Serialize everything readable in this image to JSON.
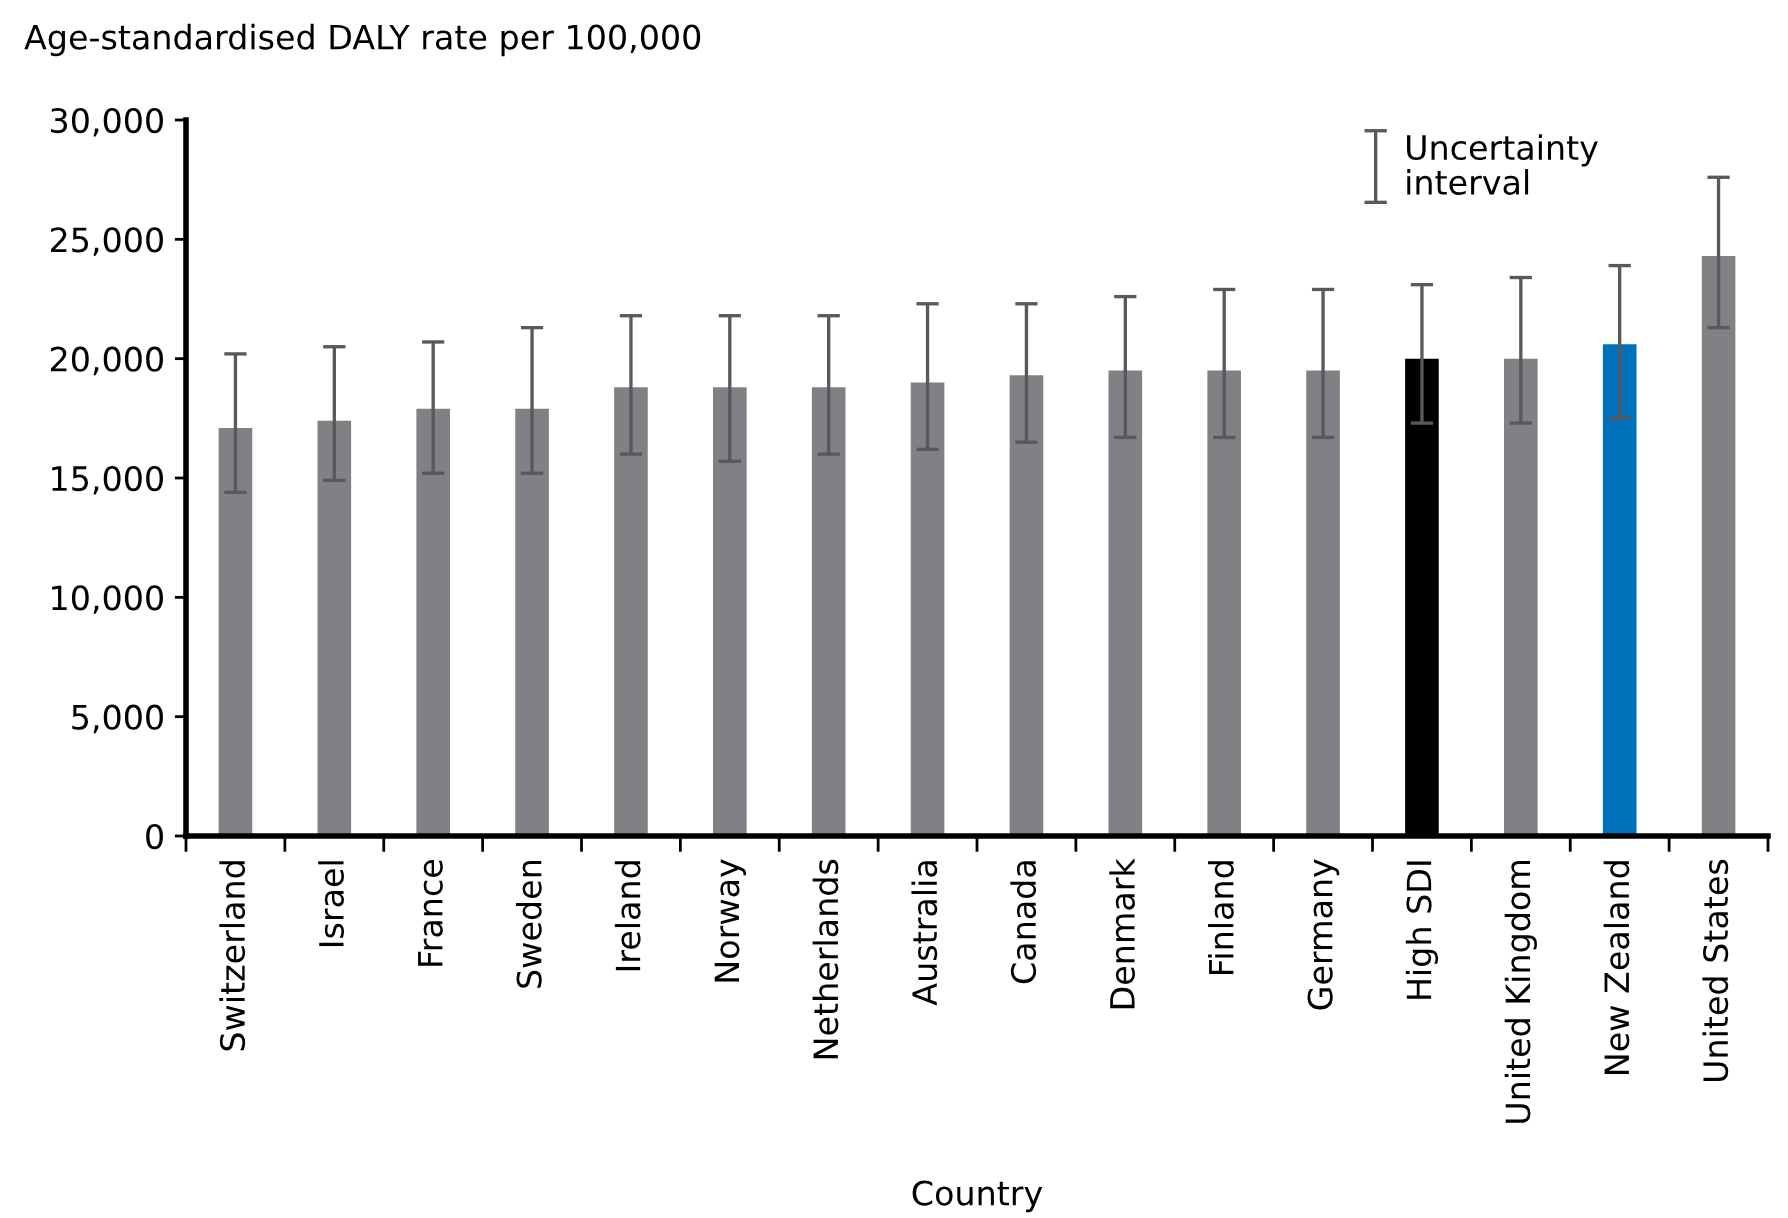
{
  "chart_data": {
    "type": "bar",
    "ylabel": "Age-standardised DALY rate per 100,000",
    "xlabel": "Country",
    "categories": [
      "Switzerland",
      "Israel",
      "France",
      "Sweden",
      "Ireland",
      "Norway",
      "Netherlands",
      "Australia",
      "Canada",
      "Denmark",
      "Finland",
      "Germany",
      "High SDI",
      "United Kingdom",
      "New Zealand",
      "United States"
    ],
    "values": [
      17100,
      17400,
      17900,
      17900,
      18800,
      18800,
      18800,
      19000,
      19300,
      19500,
      19500,
      19500,
      20000,
      20000,
      20600,
      24300
    ],
    "errors": [
      [
        14400,
        20200
      ],
      [
        14900,
        20500
      ],
      [
        15200,
        20700
      ],
      [
        15200,
        21300
      ],
      [
        16000,
        21800
      ],
      [
        15700,
        21800
      ],
      [
        16000,
        21800
      ],
      [
        16200,
        22300
      ],
      [
        16500,
        22300
      ],
      [
        16700,
        22600
      ],
      [
        16700,
        22900
      ],
      [
        16700,
        22900
      ],
      [
        17300,
        23100
      ],
      [
        17300,
        23400
      ],
      [
        17500,
        23900
      ],
      [
        21300,
        27600
      ]
    ],
    "colors": [
      "#808184",
      "#808184",
      "#808184",
      "#808184",
      "#808184",
      "#808184",
      "#808184",
      "#808184",
      "#808184",
      "#808184",
      "#808184",
      "#808184",
      "#000000",
      "#808184",
      "#0072bc",
      "#808184"
    ],
    "ylim": [
      0,
      30000
    ],
    "yticks": [
      {
        "value": 0,
        "label": "0"
      },
      {
        "value": 5000,
        "label": "5,000"
      },
      {
        "value": 10000,
        "label": "10,000"
      },
      {
        "value": 15000,
        "label": "15,000"
      },
      {
        "value": 20000,
        "label": "20,000"
      },
      {
        "value": 25000,
        "label": "25,000"
      },
      {
        "value": 30000,
        "label": "30,000"
      }
    ],
    "annotations": [
      "Uncertainty interval"
    ],
    "grid": false
  }
}
